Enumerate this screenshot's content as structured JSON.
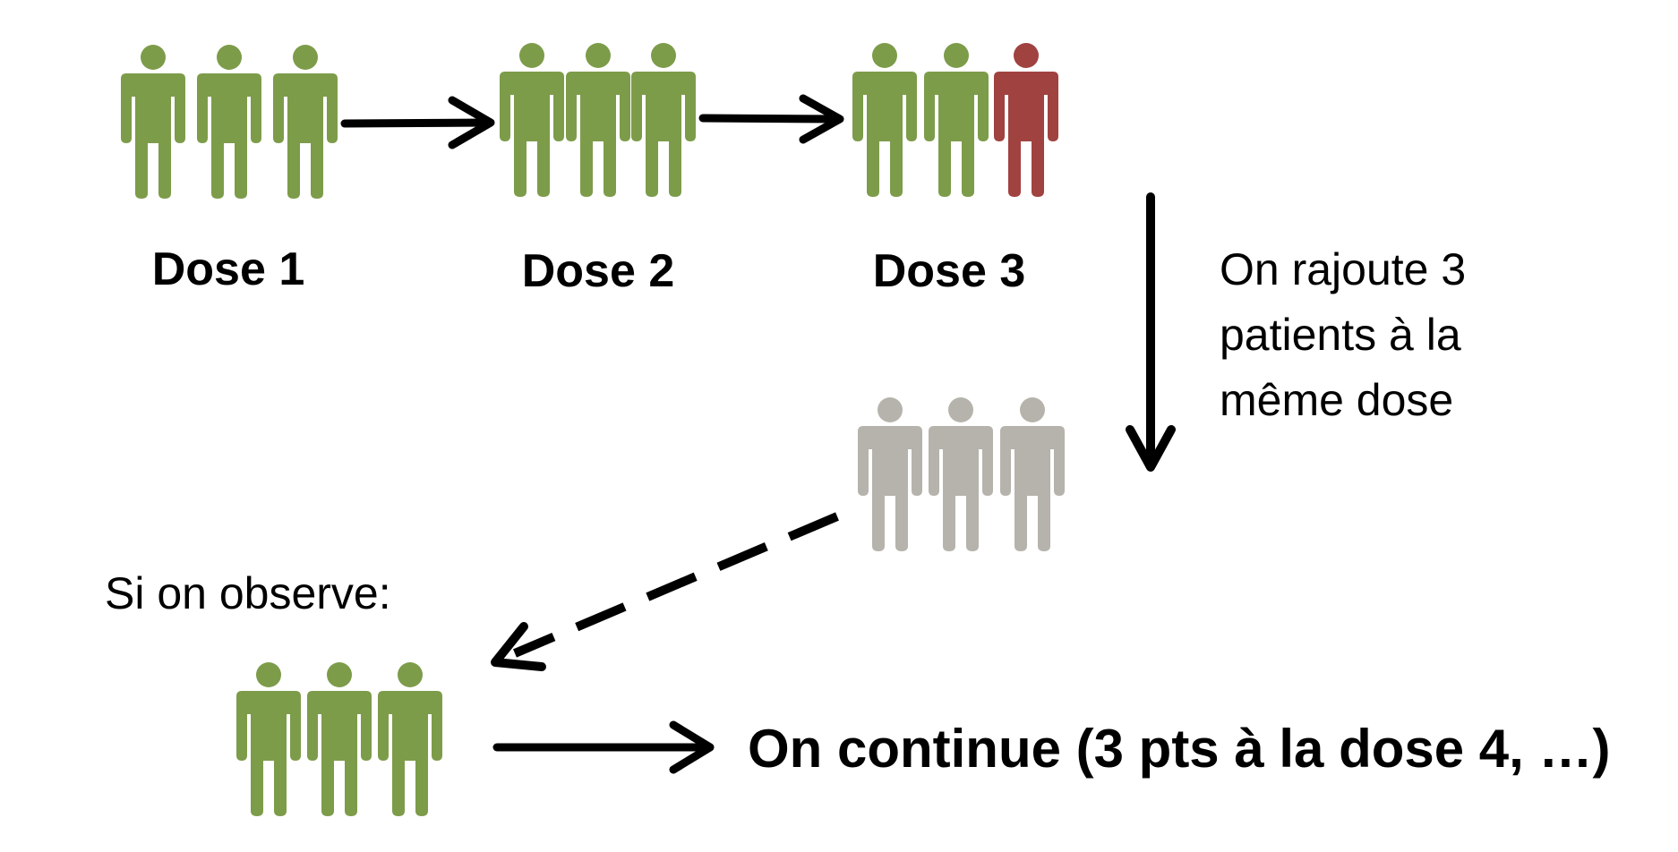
{
  "colors": {
    "patient_ok": "#7d9c4a",
    "patient_toxic": "#a04240",
    "patient_pending": "#b5b3ab",
    "arrow": "#000000",
    "background": "#ffffff"
  },
  "doses": [
    {
      "label": "Dose 1",
      "patients": [
        "ok",
        "ok",
        "ok"
      ]
    },
    {
      "label": "Dose 2",
      "patients": [
        "ok",
        "ok",
        "ok"
      ]
    },
    {
      "label": "Dose 3",
      "patients": [
        "ok",
        "ok",
        "toxic"
      ]
    }
  ],
  "added_patients": {
    "caption_lines": [
      "On rajoute 3",
      "patients à la",
      "même dose"
    ],
    "patients": [
      "pending",
      "pending",
      "pending"
    ]
  },
  "observation": {
    "label": "Si on observe:",
    "patients": [
      "ok",
      "ok",
      "ok"
    ],
    "outcome": "On continue (3 pts à la dose 4, …)"
  }
}
